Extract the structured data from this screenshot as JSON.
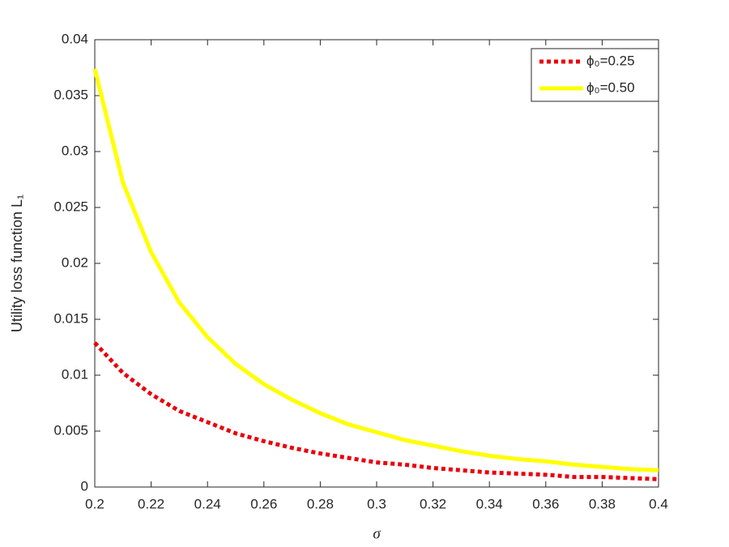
{
  "chart_data": {
    "type": "line",
    "x_label": "σ",
    "y_label": "Utility loss function L₁",
    "x": [
      0.2,
      0.21,
      0.22,
      0.23,
      0.24,
      0.25,
      0.26,
      0.27,
      0.28,
      0.29,
      0.3,
      0.31,
      0.32,
      0.33,
      0.34,
      0.35,
      0.36,
      0.37,
      0.38,
      0.39,
      0.4
    ],
    "series": [
      {
        "name": "ϕ₀=0.25",
        "color": "#e8000b",
        "dash": "dotted",
        "values": [
          0.0129,
          0.0102,
          0.0083,
          0.0068,
          0.0058,
          0.0048,
          0.0041,
          0.0035,
          0.003,
          0.0026,
          0.0022,
          0.002,
          0.0017,
          0.0015,
          0.0013,
          0.0012,
          0.0011,
          0.0009,
          0.0009,
          0.0008,
          0.0007
        ]
      },
      {
        "name": "ϕ₀=0.50",
        "color": "#ffff00",
        "dash": "solid",
        "values": [
          0.0374,
          0.0272,
          0.021,
          0.0165,
          0.0134,
          0.011,
          0.0092,
          0.0078,
          0.0066,
          0.0056,
          0.0049,
          0.0042,
          0.0037,
          0.0032,
          0.0028,
          0.0025,
          0.0023,
          0.002,
          0.0018,
          0.0016,
          0.0015
        ]
      }
    ],
    "xlim": [
      0.2,
      0.4
    ],
    "xticks": [
      0.2,
      0.22,
      0.24,
      0.26,
      0.28,
      0.3,
      0.32,
      0.34,
      0.36,
      0.38,
      0.4
    ],
    "ylim": [
      0,
      0.04
    ],
    "yticks": [
      0,
      0.005,
      0.01,
      0.015,
      0.02,
      0.025,
      0.03,
      0.035,
      0.04
    ],
    "grid": false,
    "legend": "top-right"
  }
}
